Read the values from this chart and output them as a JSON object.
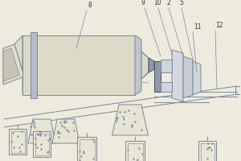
{
  "bg_color": "#eeeade",
  "line_color": "#7a8896",
  "dark_line": "#4a5560",
  "label_color": "#333333",
  "figsize": [
    3.0,
    2.0
  ],
  "dpi": 100,
  "labels": [
    "8",
    "9",
    "10",
    "2",
    "5",
    "11",
    "12"
  ]
}
